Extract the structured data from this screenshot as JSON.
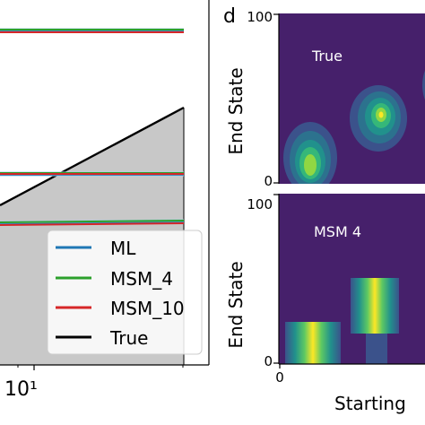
{
  "chart_data": [
    {
      "type": "line",
      "title": "",
      "xlabel": "",
      "ylabel": "",
      "x_scale": "log",
      "x_tick_labels": [
        "10¹"
      ],
      "shaded_region": {
        "color": "#c8c8c8",
        "edge": "black"
      },
      "series": [
        {
          "name": "ML",
          "color": "#1f77b4"
        },
        {
          "name": "MSM_4",
          "color": "#2ca02c"
        },
        {
          "name": "MSM_10",
          "color": "#d62728"
        },
        {
          "name": "True",
          "color": "#000000"
        }
      ],
      "legend_placement": "bottom-right"
    },
    {
      "type": "heatmap",
      "panel_label": "d",
      "panels": [
        {
          "title": "True",
          "ylabel": "End State",
          "y_ticks": [
            "100",
            "0"
          ]
        },
        {
          "title": "MSM 4",
          "ylabel": "End State",
          "y_ticks": [
            "100",
            "0"
          ],
          "x_ticks": [
            "0"
          ]
        }
      ],
      "xlabel": "Starting",
      "colormap": "viridis",
      "background_color": "#46206b"
    }
  ]
}
